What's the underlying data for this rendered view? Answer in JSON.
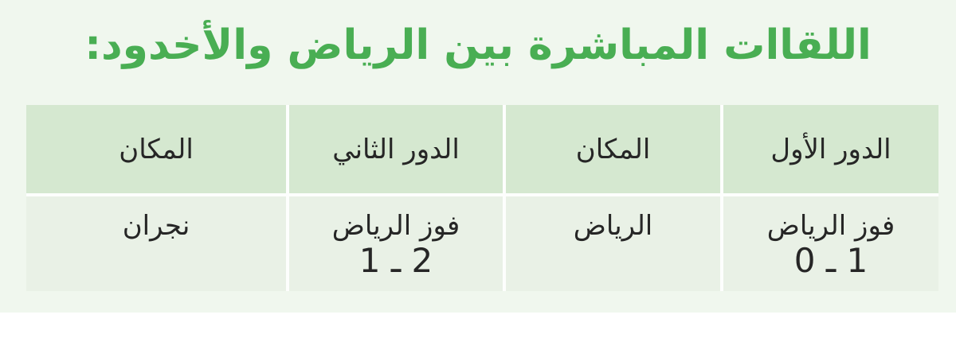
{
  "title": {
    "text": "اللقاات المباشرة بين الرياض والأخدود:",
    "color": "#49ae53"
  },
  "table": {
    "colors": {
      "header_background": "#d5e8d0",
      "body_background": "#e9f1e6",
      "page_background": "#f0f7ee",
      "gap": "#ffffff",
      "text": "#262626"
    },
    "columns": [
      {
        "header": "الدور الأول",
        "result": "فوز الرياض",
        "score": "1 ـ 0"
      },
      {
        "header": "المكان",
        "result": "الرياض",
        "score": ""
      },
      {
        "header": "الدور الثاني",
        "result": "فوز الرياض",
        "score": "2 ـ 1"
      },
      {
        "header": "المكان",
        "result": "نجران",
        "score": ""
      }
    ]
  }
}
